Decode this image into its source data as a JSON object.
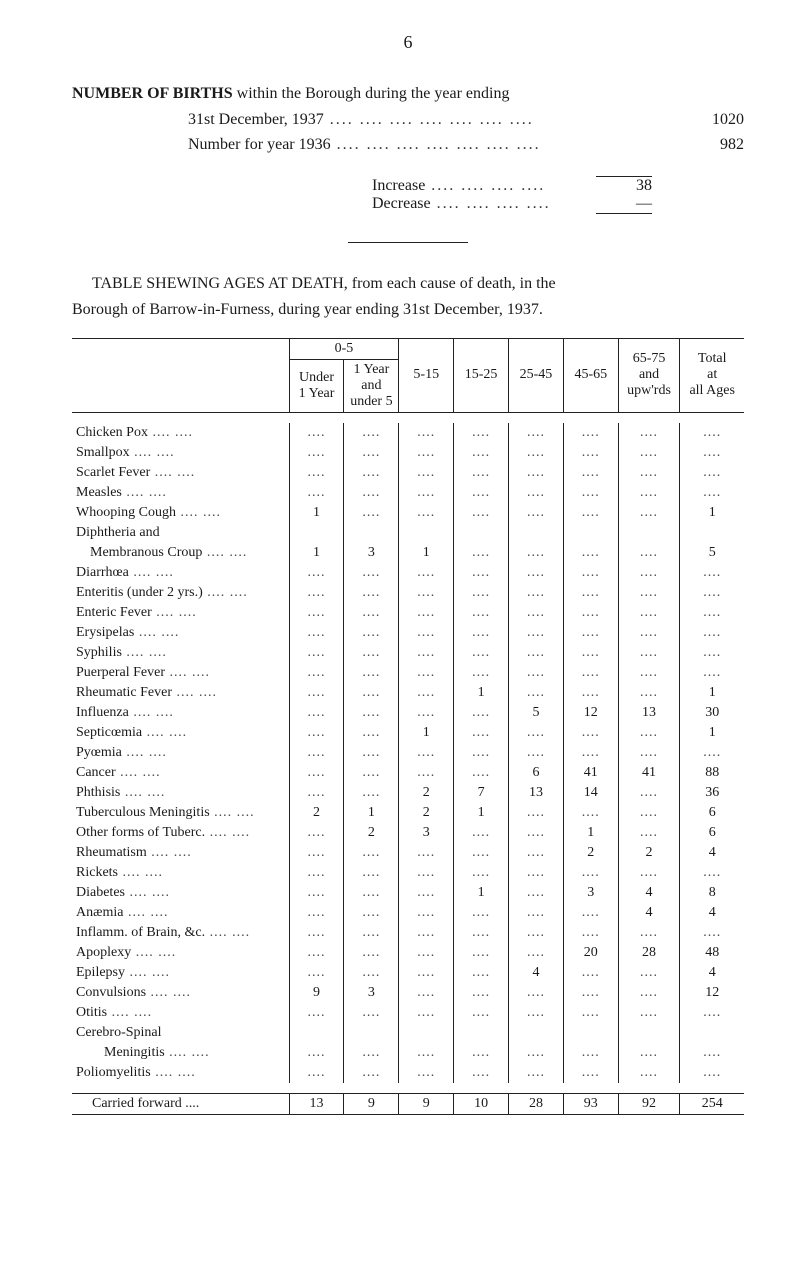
{
  "page_number": "6",
  "births": {
    "title": "NUMBER OF BIRTHS",
    "title_rest": " within the Borough during the year ending",
    "rows": [
      {
        "label": "31st December, 1937",
        "value": "1020"
      },
      {
        "label": "Number for year 1936",
        "value": "982"
      }
    ],
    "increase_label": "Increase",
    "increase_value": "38",
    "decrease_label": "Decrease",
    "decrease_value": "—"
  },
  "caption": {
    "line1_a": "TABLE SHEWING AGES AT DEATH, from each cause of death, in the",
    "line2": "Borough of Barrow-in-Furness, during year ending 31st December, 1937."
  },
  "table": {
    "head": {
      "group05": "0-5",
      "under1": "Under\n1 Year",
      "y1u5": "1 Year\nand\nunder 5",
      "c5_15": "5-15",
      "c15_25": "15-25",
      "c25_45": "25-45",
      "c45_65": "45-65",
      "c65_75": "65-75\nand\nupw'rds",
      "total": "Total\nat\nall Ages"
    },
    "rows": [
      {
        "label": "Chicken Pox",
        "v": [
          "....",
          "....",
          "....",
          "....",
          "....",
          "....",
          "....",
          "...."
        ]
      },
      {
        "label": "Smallpox",
        "v": [
          "....",
          "....",
          "....",
          "....",
          "....",
          "....",
          "....",
          "...."
        ]
      },
      {
        "label": "Scarlet Fever",
        "v": [
          "....",
          "....",
          "....",
          "....",
          "....",
          "....",
          "....",
          "...."
        ]
      },
      {
        "label": "Measles",
        "v": [
          "....",
          "....",
          "....",
          "....",
          "....",
          "....",
          "....",
          "...."
        ]
      },
      {
        "label": "Whooping Cough",
        "v": [
          "1",
          "....",
          "....",
          "....",
          "....",
          "....",
          "....",
          "1"
        ]
      },
      {
        "label": "Diphtheria and",
        "v": [
          "",
          "",
          "",
          "",
          "",
          "",
          "",
          ""
        ]
      },
      {
        "label": "    Membranous Croup",
        "v": [
          "1",
          "3",
          "1",
          "....",
          "....",
          "....",
          "....",
          "5"
        ]
      },
      {
        "label": "Diarrhœa",
        "v": [
          "....",
          "....",
          "....",
          "....",
          "....",
          "....",
          "....",
          "...."
        ]
      },
      {
        "label": "Enteritis (under 2 yrs.)",
        "v": [
          "....",
          "....",
          "....",
          "....",
          "....",
          "....",
          "....",
          "...."
        ]
      },
      {
        "label": "Enteric Fever",
        "v": [
          "....",
          "....",
          "....",
          "....",
          "....",
          "....",
          "....",
          "...."
        ]
      },
      {
        "label": "Erysipelas",
        "v": [
          "....",
          "....",
          "....",
          "....",
          "....",
          "....",
          "....",
          "...."
        ]
      },
      {
        "label": "Syphilis",
        "v": [
          "....",
          "....",
          "....",
          "....",
          "....",
          "....",
          "....",
          "...."
        ]
      },
      {
        "label": "Puerperal Fever",
        "v": [
          "....",
          "....",
          "....",
          "....",
          "....",
          "....",
          "....",
          "...."
        ]
      },
      {
        "label": "Rheumatic Fever",
        "v": [
          "....",
          "....",
          "....",
          "1",
          "....",
          "....",
          "....",
          "1"
        ]
      },
      {
        "label": "Influenza",
        "v": [
          "....",
          "....",
          "....",
          "....",
          "5",
          "12",
          "13",
          "30"
        ]
      },
      {
        "label": "Septicœmia",
        "v": [
          "....",
          "....",
          "1",
          "....",
          "....",
          "....",
          "....",
          "1"
        ]
      },
      {
        "label": "Pyœmia",
        "v": [
          "....",
          "....",
          "....",
          "....",
          "....",
          "....",
          "....",
          "...."
        ]
      },
      {
        "label": "Cancer",
        "v": [
          "....",
          "....",
          "....",
          "....",
          "6",
          "41",
          "41",
          "88"
        ]
      },
      {
        "label": "Phthisis",
        "v": [
          "....",
          "....",
          "2",
          "7",
          "13",
          "14",
          "....",
          "36"
        ]
      },
      {
        "label": "Tuberculous Meningitis",
        "v": [
          "2",
          "1",
          "2",
          "1",
          "....",
          "....",
          "....",
          "6"
        ]
      },
      {
        "label": "Other forms of Tuberc.",
        "v": [
          "....",
          "2",
          "3",
          "....",
          "....",
          "1",
          "....",
          "6"
        ]
      },
      {
        "label": "Rheumatism",
        "v": [
          "....",
          "....",
          "....",
          "....",
          "....",
          "2",
          "2",
          "4"
        ]
      },
      {
        "label": "Rickets",
        "v": [
          "....",
          "....",
          "....",
          "....",
          "....",
          "....",
          "....",
          "...."
        ]
      },
      {
        "label": "Diabetes",
        "v": [
          "....",
          "....",
          "....",
          "1",
          "....",
          "3",
          "4",
          "8"
        ]
      },
      {
        "label": "Anæmia",
        "v": [
          "....",
          "....",
          "....",
          "....",
          "....",
          "....",
          "4",
          "4"
        ]
      },
      {
        "label": "Inflamm. of Brain, &c.",
        "v": [
          "....",
          "....",
          "....",
          "....",
          "....",
          "....",
          "....",
          "...."
        ]
      },
      {
        "label": "Apoplexy",
        "v": [
          "....",
          "....",
          "....",
          "....",
          "....",
          "20",
          "28",
          "48"
        ]
      },
      {
        "label": "Epilepsy",
        "v": [
          "....",
          "....",
          "....",
          "....",
          "4",
          "....",
          "....",
          "4"
        ]
      },
      {
        "label": "Convulsions",
        "v": [
          "9",
          "3",
          "....",
          "....",
          "....",
          "....",
          "....",
          "12"
        ]
      },
      {
        "label": "Otitis",
        "v": [
          "....",
          "....",
          "....",
          "....",
          "....",
          "....",
          "....",
          "...."
        ]
      },
      {
        "label": "Cerebro-Spinal",
        "v": [
          "",
          "",
          "",
          "",
          "",
          "",
          "",
          ""
        ]
      },
      {
        "label": "        Meningitis",
        "v": [
          "....",
          "....",
          "....",
          "....",
          "....",
          "....",
          "....",
          "...."
        ]
      },
      {
        "label": "Poliomyelitis",
        "v": [
          "....",
          "....",
          "....",
          "....",
          "....",
          "....",
          "....",
          "...."
        ]
      }
    ],
    "footer": {
      "label": "Carried forward ....",
      "v": [
        "13",
        "9",
        "9",
        "10",
        "28",
        "93",
        "92",
        "254"
      ]
    }
  },
  "style": {
    "background": "#ffffff",
    "text_color": "#1a1a1a",
    "rule_color": "#222222",
    "body_fontsize": 16,
    "table_fontsize": 14
  }
}
